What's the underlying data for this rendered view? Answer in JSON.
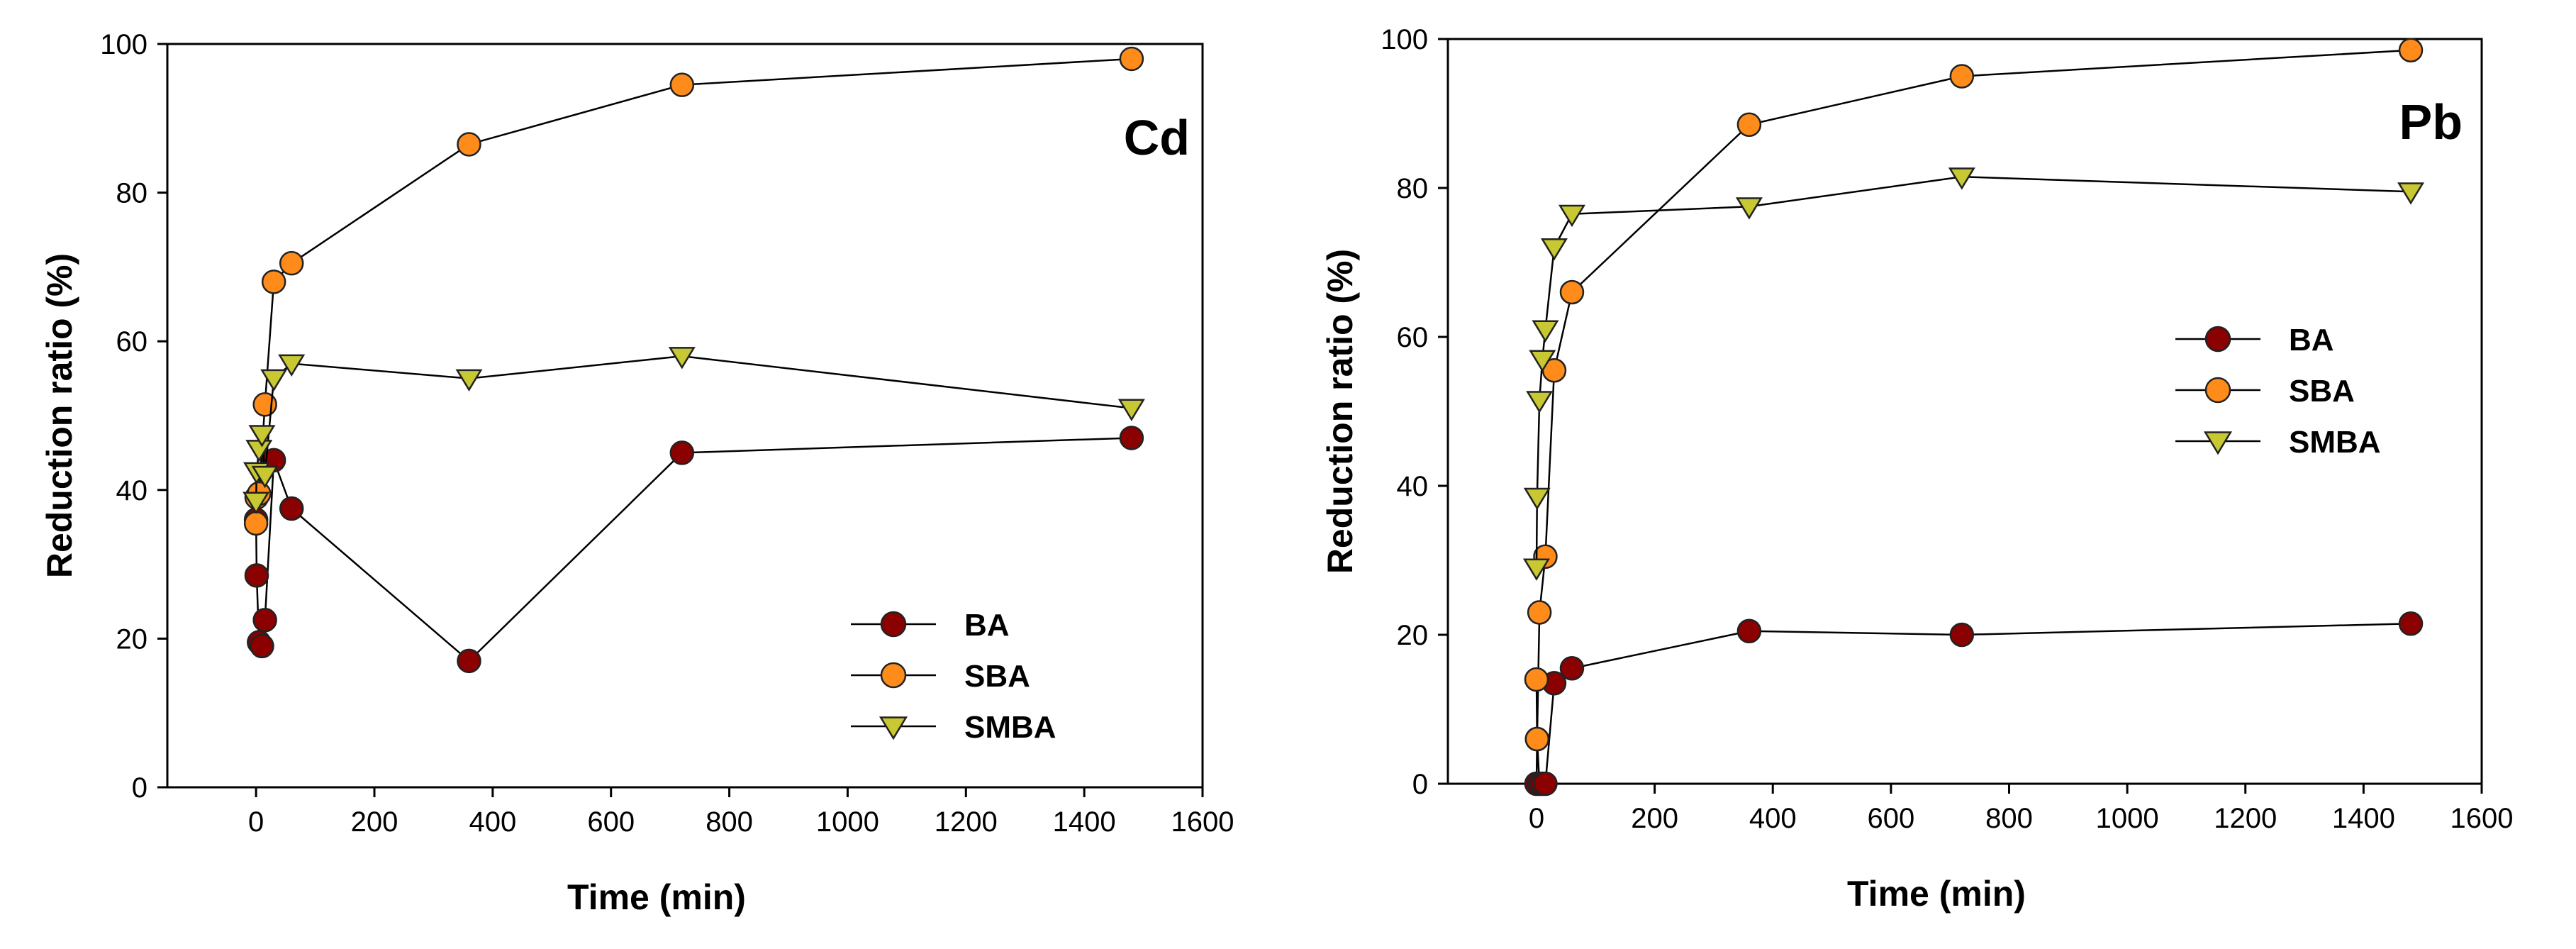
{
  "chart_data": [
    {
      "type": "line",
      "title": "Cd",
      "xlabel": "Time (min)",
      "ylabel": "Reduction ratio (%)",
      "xlim": [
        -150,
        1600
      ],
      "ylim": [
        0,
        100
      ],
      "xticks": [
        0,
        200,
        400,
        600,
        800,
        1000,
        1200,
        1400,
        1600
      ],
      "yticks": [
        0,
        20,
        40,
        60,
        80,
        100
      ],
      "legend_position": "bottom-right",
      "series": [
        {
          "name": "BA",
          "marker": "circle",
          "color": "#8b0000",
          "x": [
            0,
            1,
            5,
            10,
            15,
            30,
            60,
            360,
            720,
            1480
          ],
          "y": [
            36,
            28.5,
            19.5,
            19,
            22.5,
            44,
            37.5,
            17,
            45,
            47
          ]
        },
        {
          "name": "SBA",
          "marker": "circle",
          "color": "#ff8c1a",
          "x": [
            0,
            1,
            5,
            15,
            30,
            60,
            360,
            720,
            1480
          ],
          "y": [
            35.5,
            39,
            39.5,
            51.5,
            68,
            70.5,
            86.5,
            94.5,
            98
          ]
        },
        {
          "name": "SMBA",
          "marker": "triangle",
          "color": "#c8c832",
          "x": [
            0,
            1,
            5,
            10,
            15,
            30,
            60,
            360,
            720,
            1480
          ],
          "y": [
            38.5,
            42.5,
            45.5,
            47.5,
            42,
            55,
            57,
            55,
            58,
            51
          ]
        }
      ]
    },
    {
      "type": "line",
      "title": "Pb",
      "xlabel": "Time (min)",
      "ylabel": "Reduction ratio (%)",
      "xlim": [
        -150,
        1600
      ],
      "ylim": [
        0,
        100
      ],
      "xticks": [
        0,
        200,
        400,
        600,
        800,
        1000,
        1200,
        1400,
        1600
      ],
      "yticks": [
        0,
        20,
        40,
        60,
        80,
        100
      ],
      "legend_position": "center-left",
      "series": [
        {
          "name": "BA",
          "marker": "circle",
          "color": "#8b0000",
          "x": [
            0,
            1,
            5,
            10,
            15,
            30,
            60,
            360,
            720,
            1480
          ],
          "y": [
            0,
            6,
            0,
            0,
            0,
            13.5,
            15.5,
            20.5,
            20,
            21.5
          ]
        },
        {
          "name": "SBA",
          "marker": "circle",
          "color": "#ff8c1a",
          "x": [
            0,
            1,
            5,
            15,
            30,
            60,
            360,
            720,
            1480
          ],
          "y": [
            14,
            6,
            23,
            30.5,
            55.5,
            66,
            88.5,
            95,
            98.5
          ]
        },
        {
          "name": "SMBA",
          "marker": "triangle",
          "color": "#c8c832",
          "x": [
            0,
            1,
            5,
            10,
            15,
            30,
            60,
            360,
            720,
            1480
          ],
          "y": [
            29,
            38.5,
            51.5,
            57,
            61,
            72,
            76.5,
            77.5,
            81.5,
            79.5
          ]
        }
      ]
    }
  ]
}
